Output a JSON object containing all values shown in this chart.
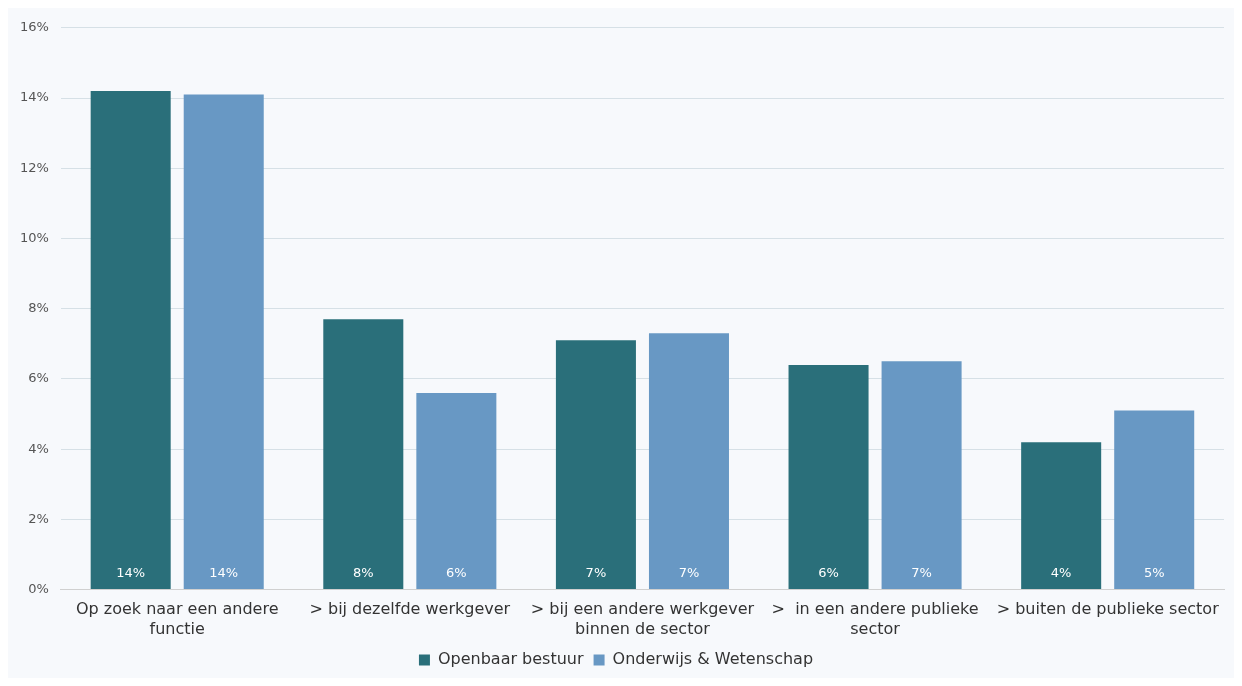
{
  "chart_data": {
    "type": "bar",
    "categories": [
      "Op zoek naar een andere functie",
      "> bij dezelfde werkgever",
      "> bij een andere werkgever binnen de sector",
      ">  in een andere publieke sector",
      "> buiten de publieke sector"
    ],
    "series": [
      {
        "name": "Openbaar bestuur",
        "color": "#2a6f7a",
        "values": [
          14.2,
          7.7,
          7.1,
          6.4,
          4.2
        ],
        "value_labels": [
          "14%",
          "8%",
          "7%",
          "6%",
          "4%"
        ]
      },
      {
        "name": "Onderwijs & Wetenschap",
        "color": "#6898c4",
        "values": [
          14.1,
          5.6,
          7.3,
          6.5,
          5.1
        ],
        "value_labels": [
          "14%",
          "6%",
          "7%",
          "7%",
          "5%"
        ]
      }
    ],
    "ylim": [
      0,
      16
    ],
    "yticks": [
      {
        "value": 0,
        "label": "0%"
      },
      {
        "value": 2,
        "label": "2%"
      },
      {
        "value": 4,
        "label": "4%"
      },
      {
        "value": 6,
        "label": "6%"
      },
      {
        "value": 8,
        "label": "8%"
      },
      {
        "value": 10,
        "label": "10%"
      },
      {
        "value": 12,
        "label": "12%"
      },
      {
        "value": 14,
        "label": "14%"
      },
      {
        "value": 16,
        "label": "16%"
      }
    ],
    "grid": "y",
    "legend": "bottom"
  }
}
